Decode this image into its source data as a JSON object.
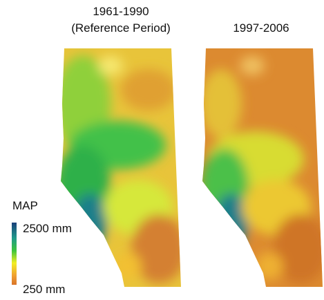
{
  "panels": [
    {
      "title": [
        "1961-1990",
        "(Reference Period)"
      ]
    },
    {
      "title": [
        "1997-2006"
      ]
    }
  ],
  "legend": {
    "title": "MAP",
    "max_label": "2500 mm",
    "min_label": "250 mm"
  }
}
